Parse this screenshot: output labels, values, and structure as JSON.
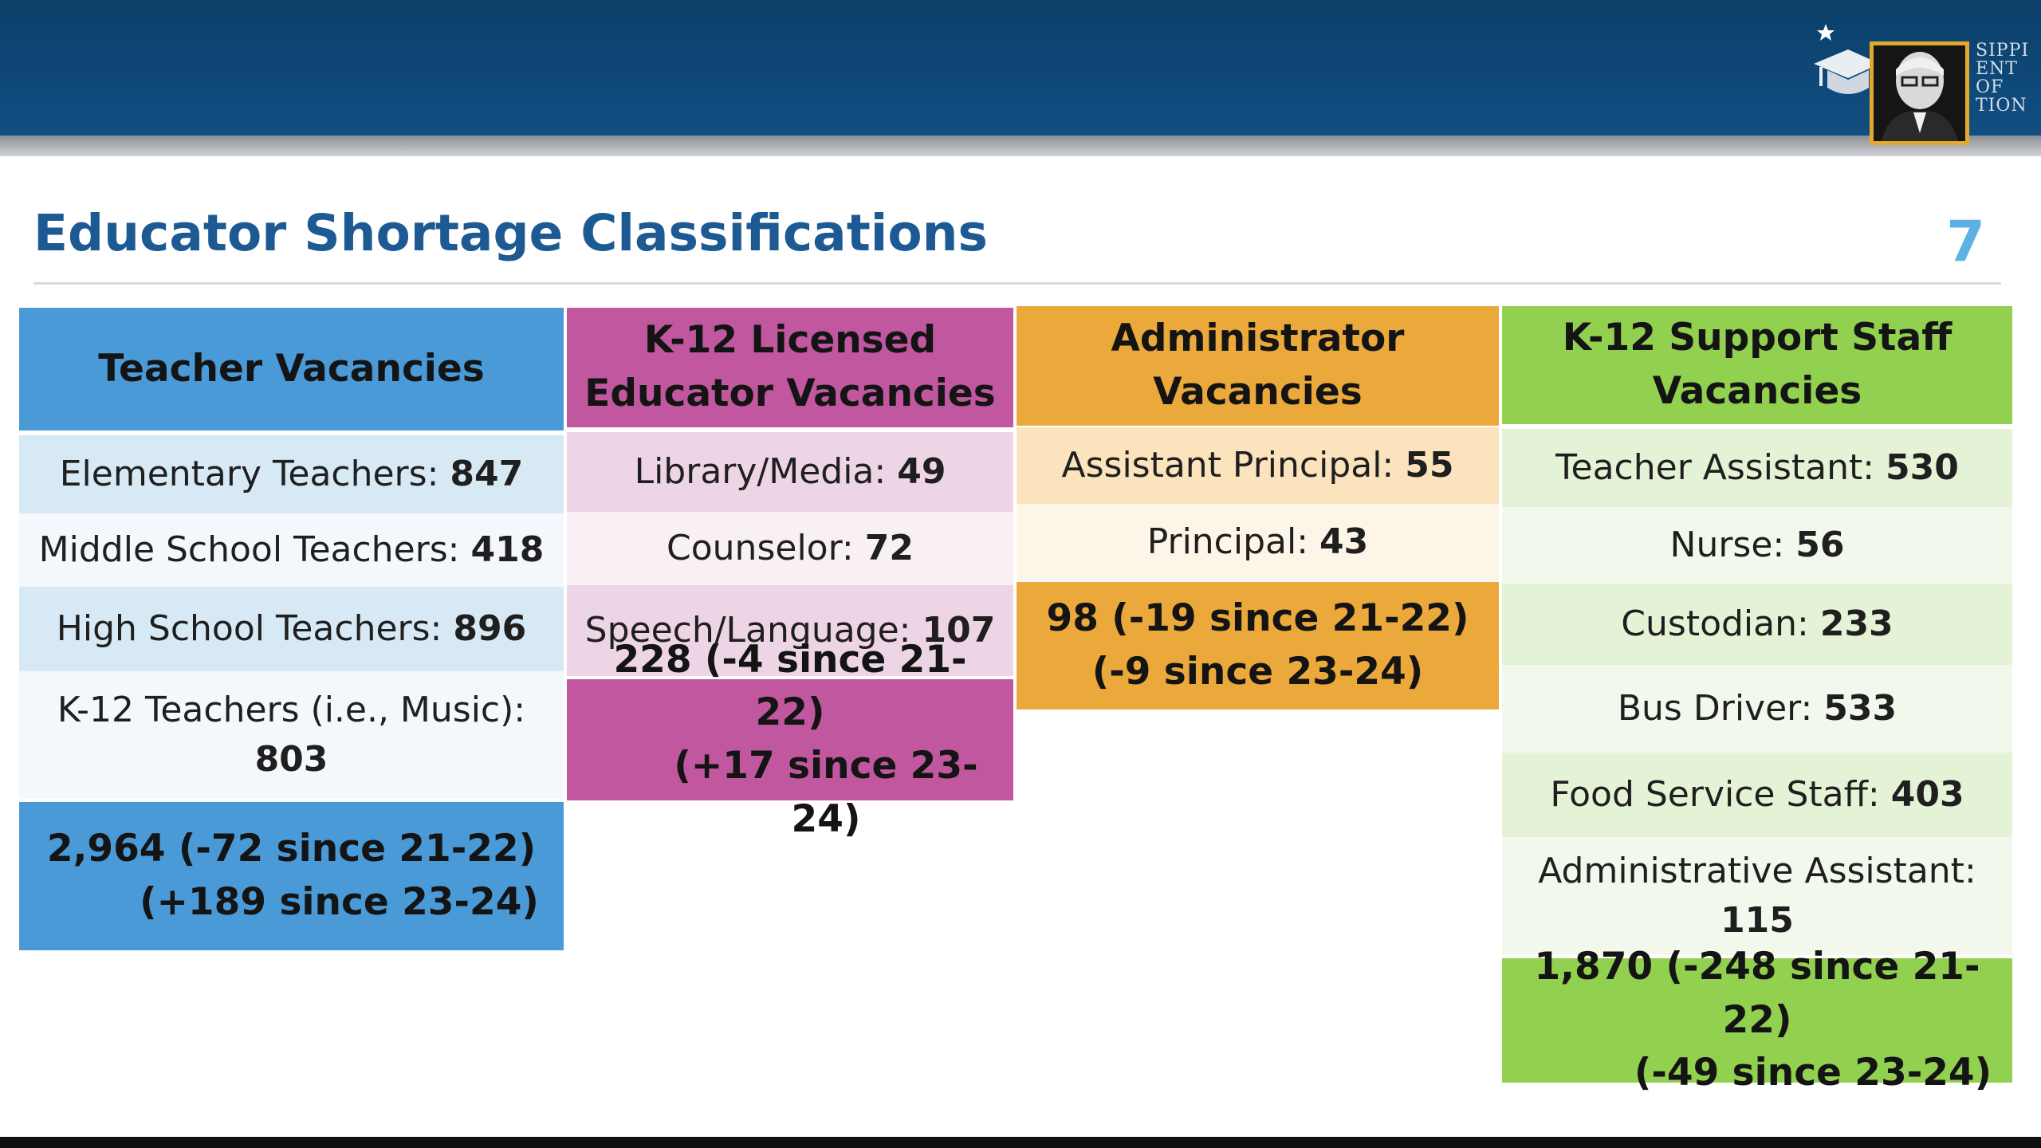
{
  "header": {
    "logo_icon": "graduation-cap-icon",
    "logo_text_lines": [
      "SIPPI",
      "ENT OF",
      "TION"
    ]
  },
  "slide": {
    "title": "Educator Shortage Classifications",
    "page_number": "7"
  },
  "colors": {
    "teacher_header": "#4a9ad8",
    "teacher_row_light": "#d8e9f6",
    "teacher_row_white": "#f4f8fc",
    "licensed_header": "#c0579f",
    "licensed_row_light": "#eed5e6",
    "licensed_row_white": "#f9f0f5",
    "admin_header": "#eaa93a",
    "admin_row_light": "#fae3bd",
    "admin_row_white": "#fdf5e8",
    "support_header": "#92d050",
    "support_row_light": "#e4f2d5",
    "support_row_white": "#f2f9ec"
  },
  "columns": [
    {
      "header_lines": [
        "Teacher Vacancies"
      ],
      "rows": [
        {
          "label": "Elementary Teachers: ",
          "value": "847"
        },
        {
          "label": "Middle School Teachers: ",
          "value": "418"
        },
        {
          "label": "High School Teachers: ",
          "value": "896"
        },
        {
          "label": "K-12 Teachers (i.e., Music):",
          "value": "803"
        }
      ],
      "total_line1": "2,964 (-72 since 21-22)",
      "total_line2": "(+189 since 23-24)"
    },
    {
      "header_lines": [
        "K-12 Licensed",
        "Educator Vacancies"
      ],
      "rows": [
        {
          "label": "Library/Media: ",
          "value": "49"
        },
        {
          "label": "Counselor: ",
          "value": "72"
        },
        {
          "label": "Speech/Language: ",
          "value": "107"
        }
      ],
      "total_line1": "228 (-4 since 21-22)",
      "total_line2": "(+17 since 23-24)"
    },
    {
      "header_lines": [
        "Administrator Vacancies"
      ],
      "rows": [
        {
          "label": "Assistant Principal: ",
          "value": "55"
        },
        {
          "label": "Principal: ",
          "value": "43"
        }
      ],
      "total_line1": "98 (-19 since 21-22)",
      "total_line2": "(-9 since 23-24)"
    },
    {
      "header_lines": [
        "K-12 Support Staff",
        "Vacancies"
      ],
      "rows": [
        {
          "label": "Teacher Assistant: ",
          "value": "530"
        },
        {
          "label": "Nurse: ",
          "value": "56"
        },
        {
          "label": "Custodian: ",
          "value": "233"
        },
        {
          "label": "Bus Driver: ",
          "value": "533"
        },
        {
          "label": "Food Service Staff: ",
          "value": "403"
        },
        {
          "label": "Administrative Assistant:",
          "value": "115"
        }
      ],
      "total_line1": "1,870 (-248 since 21-22)",
      "total_line2": "(-49 since 23-24)"
    }
  ]
}
